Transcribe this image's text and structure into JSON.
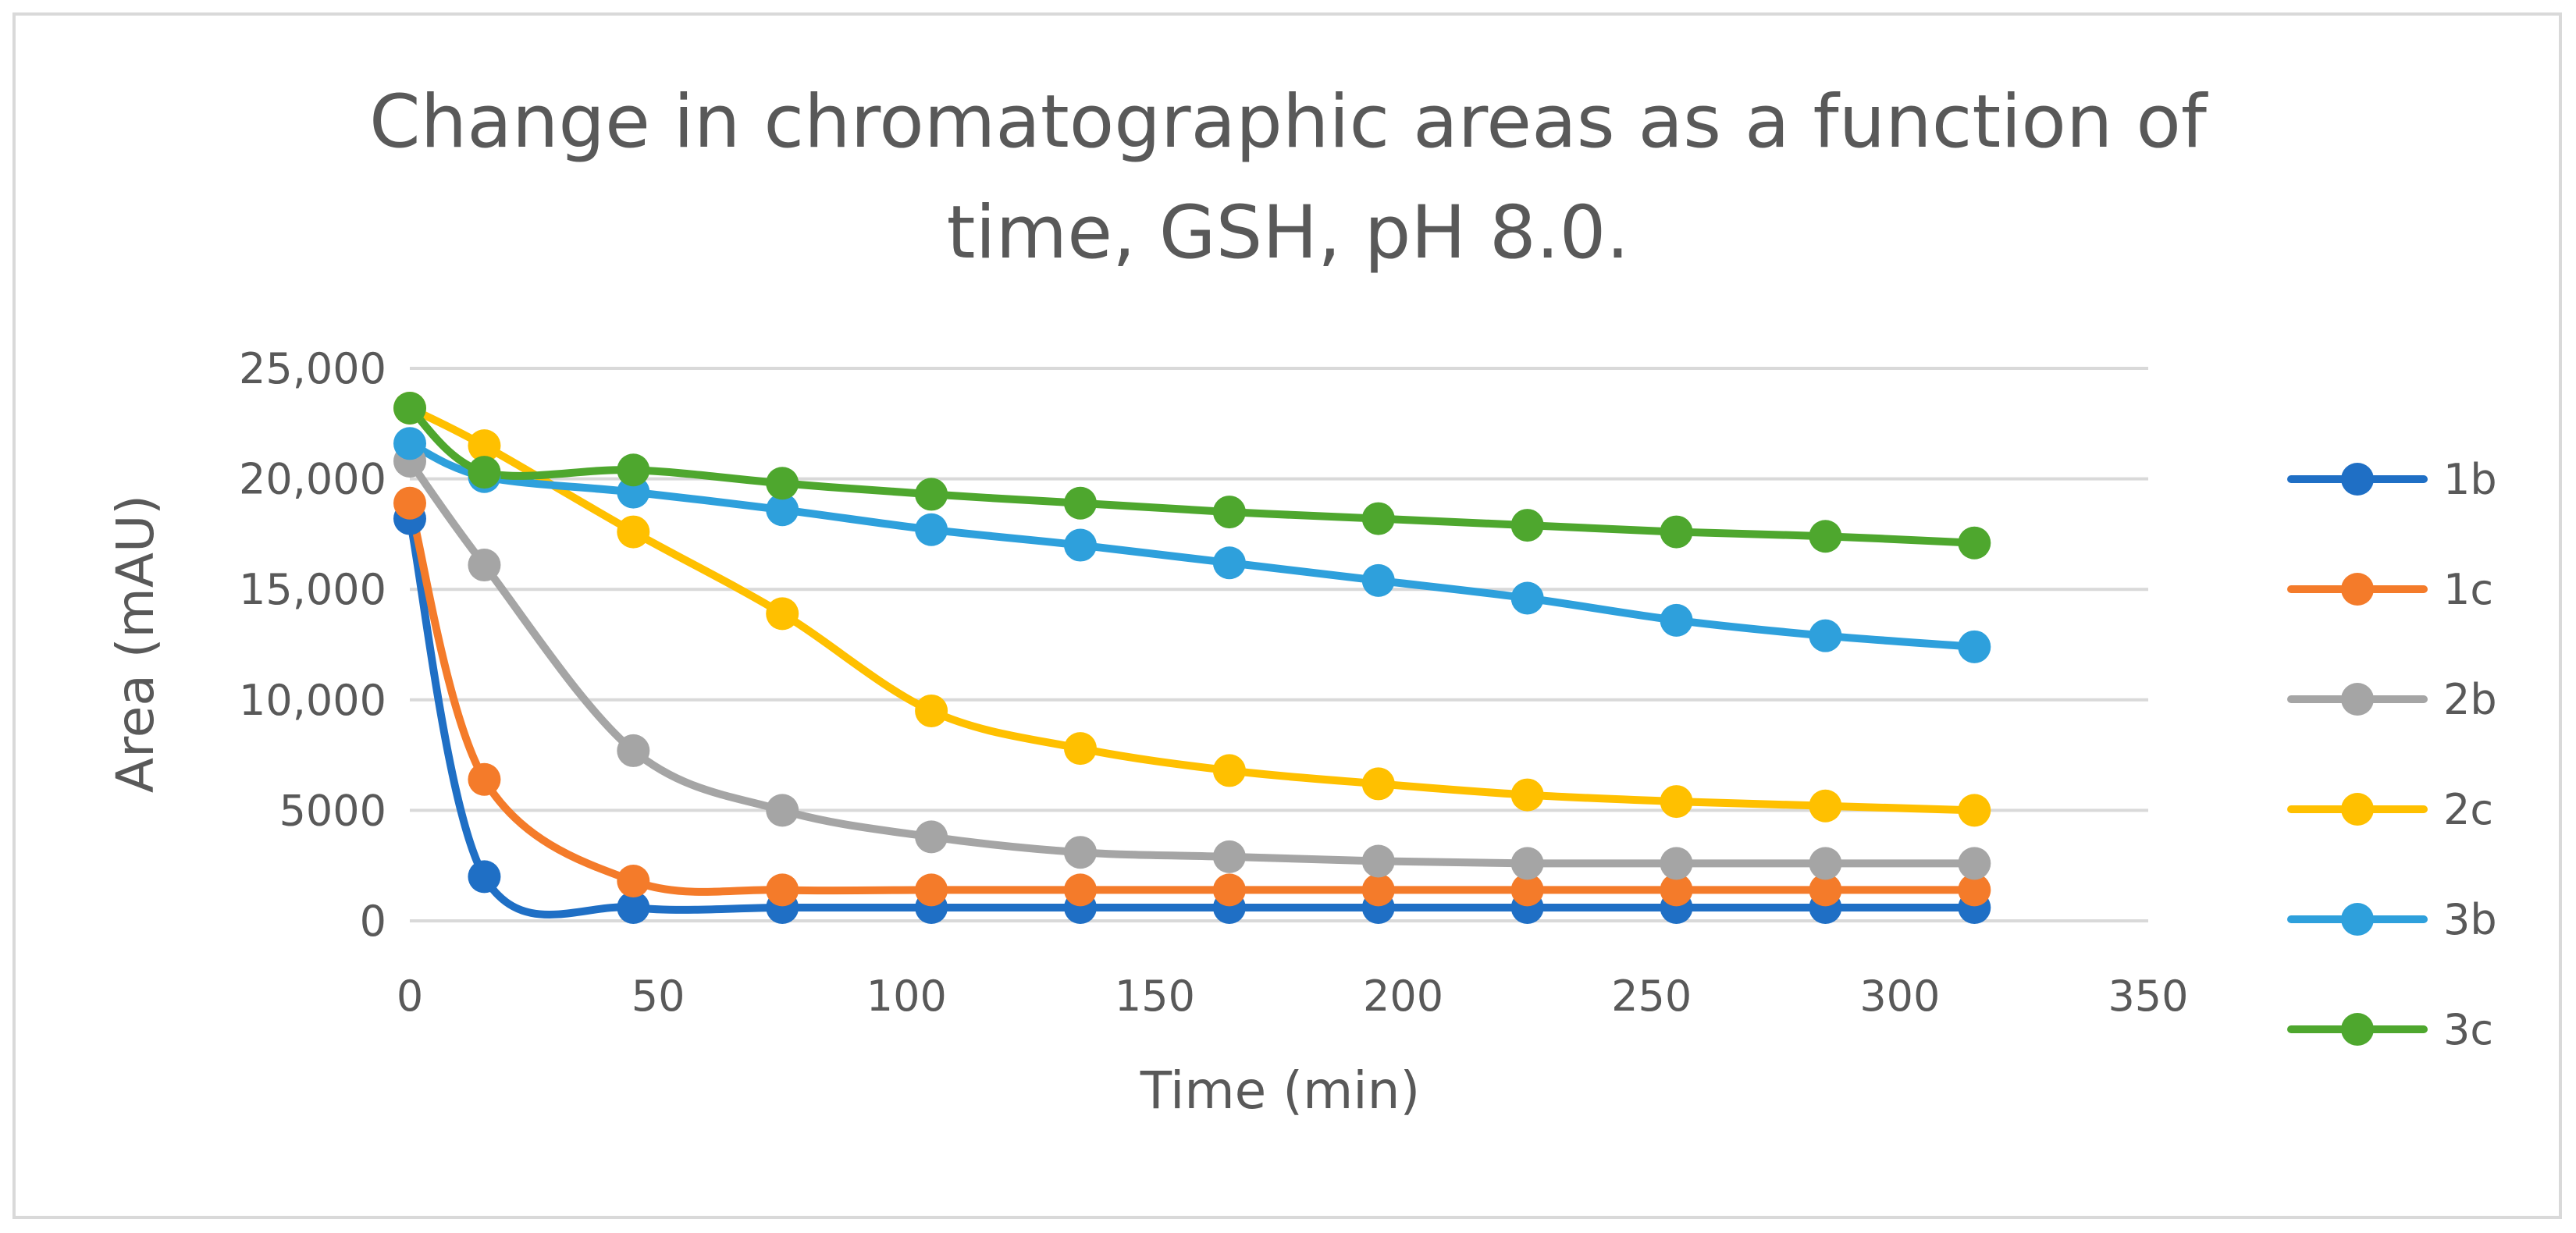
{
  "chart_data": {
    "type": "line",
    "title_lines": [
      "Change in chromatographic areas as a function of",
      "time, GSH, pH 8.0."
    ],
    "xlabel": "Time (min)",
    "ylabel": "Area (mAU)",
    "xlim": [
      0,
      350
    ],
    "ylim": [
      0,
      25000
    ],
    "x_ticks": [
      0,
      50,
      100,
      150,
      200,
      250,
      300,
      350
    ],
    "x_tick_labels": [
      "0",
      "50",
      "100",
      "150",
      "200",
      "250",
      "300",
      "350"
    ],
    "y_ticks": [
      0,
      5000,
      10000,
      15000,
      20000,
      25000
    ],
    "y_tick_labels": [
      "0",
      "5000",
      "10,000",
      "15,000",
      "20,000",
      "25,000"
    ],
    "grid": "horizontal",
    "legend_position": "right",
    "x": [
      0,
      15,
      45,
      75,
      105,
      135,
      165,
      195,
      225,
      255,
      285,
      315
    ],
    "series": [
      {
        "name": "1b",
        "color": "#1F6FC5",
        "values": [
          18200,
          2000,
          600,
          600,
          600,
          600,
          600,
          600,
          600,
          600,
          600,
          600
        ]
      },
      {
        "name": "1c",
        "color": "#F47B2A",
        "values": [
          18900,
          6400,
          1800,
          1400,
          1400,
          1400,
          1400,
          1400,
          1400,
          1400,
          1400,
          1400
        ]
      },
      {
        "name": "2b",
        "color": "#A5A5A5",
        "values": [
          20800,
          16100,
          7700,
          5000,
          3800,
          3100,
          2900,
          2700,
          2600,
          2600,
          2600,
          2600
        ]
      },
      {
        "name": "2c",
        "color": "#FFC000",
        "values": [
          23200,
          21500,
          17600,
          13900,
          9500,
          7800,
          6800,
          6200,
          5700,
          5400,
          5200,
          5000
        ]
      },
      {
        "name": "3b",
        "color": "#2EA0DC",
        "values": [
          21600,
          20100,
          19400,
          18600,
          17700,
          17000,
          16200,
          15400,
          14600,
          13600,
          12900,
          12400
        ]
      },
      {
        "name": "3c",
        "color": "#4EA72E",
        "values": [
          23200,
          20300,
          20400,
          19800,
          19300,
          18900,
          18500,
          18200,
          17900,
          17600,
          17400,
          17100
        ]
      }
    ]
  }
}
